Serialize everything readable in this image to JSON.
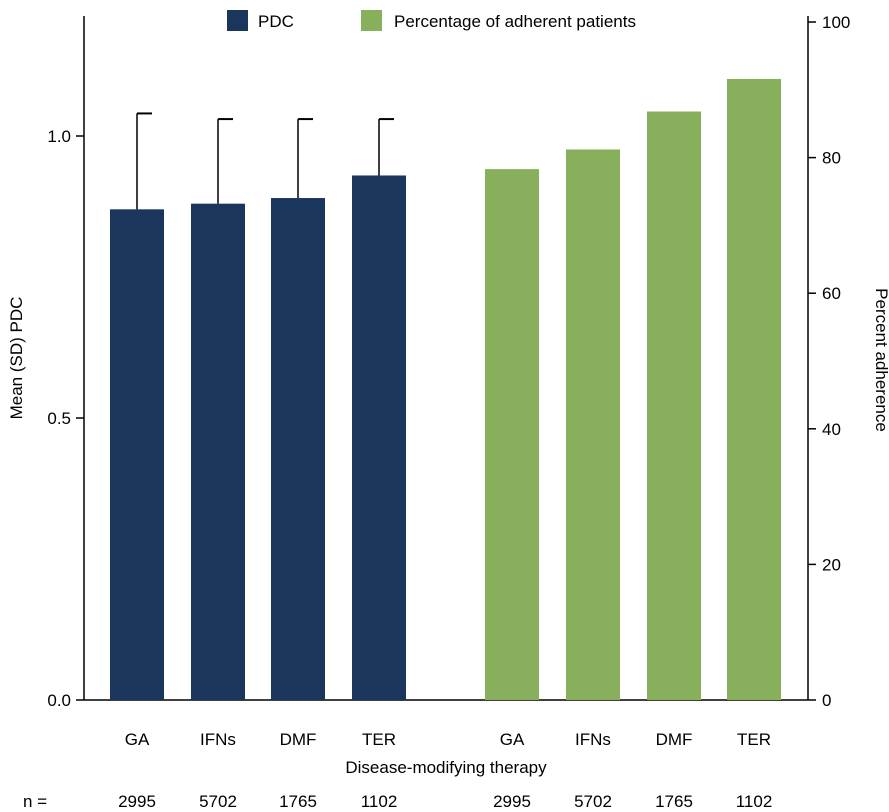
{
  "chart_data": {
    "type": "bar",
    "title": "",
    "xlabel": "Disease-modifying therapy",
    "ylabel_left": "Mean (SD) PDC",
    "ylabel_right": "Percent adherence",
    "ylim_left": [
      0,
      1.15
    ],
    "ylim_right": [
      0,
      100
    ],
    "yticks_left": [
      "0.0",
      "0.5",
      "1.0"
    ],
    "yticks_right": [
      "0",
      "20",
      "40",
      "60",
      "80",
      "100"
    ],
    "grid": false,
    "legend_position": "top",
    "n_label": "n =",
    "groups": [
      {
        "name": "PDC",
        "color": "#1b365d",
        "axis": "left",
        "categories": [
          "GA",
          "IFNs",
          "DMF",
          "TER"
        ],
        "values": [
          0.87,
          0.88,
          0.89,
          0.93
        ],
        "error_sd": [
          0.17,
          0.15,
          0.14,
          0.1
        ],
        "n": [
          "2995",
          "5702",
          "1765",
          "1102"
        ]
      },
      {
        "name": "Percentage of adherent patients",
        "color": "#88b05c",
        "axis": "right",
        "categories": [
          "GA",
          "IFNs",
          "DMF",
          "TER"
        ],
        "values": [
          78.3,
          81.2,
          86.8,
          91.6
        ],
        "n": [
          "2995",
          "5702",
          "1765",
          "1102"
        ]
      }
    ]
  }
}
